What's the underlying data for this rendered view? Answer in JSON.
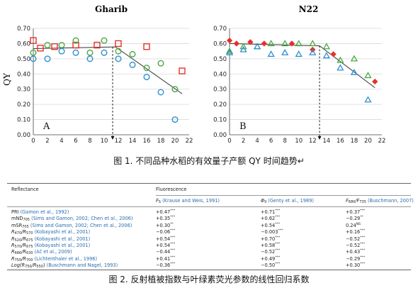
{
  "figure1": {
    "caption": "图 1. 不同品种水稻的有效量子产额 QY 时间趋势↵",
    "y_label": "QY",
    "chart_data": [
      {
        "type": "scatter",
        "title": "Gharib",
        "panel_letter": "A",
        "xlim": [
          0,
          22
        ],
        "ylim": [
          0,
          0.7
        ],
        "x_ticks": [
          0,
          2,
          4,
          6,
          8,
          10,
          12,
          14,
          16,
          18,
          20,
          22
        ],
        "y_ticks": [
          "0.00",
          "0.10",
          "0.20",
          "0.30",
          "0.40",
          "0.50",
          "0.60",
          "0.70"
        ],
        "dashed_arrow_x": 11.2,
        "trend_line": [
          [
            0,
            0.567
          ],
          [
            11.6,
            0.578
          ],
          [
            21,
            0.27
          ]
        ],
        "series": [
          {
            "marker": "square",
            "color": "#e8302a",
            "points": [
              [
                0,
                0.62
              ],
              [
                1,
                0.57
              ],
              [
                3,
                0.58
              ],
              [
                6,
                0.59
              ],
              [
                9,
                0.59
              ],
              [
                12,
                0.6
              ],
              [
                16,
                0.58
              ],
              [
                21,
                0.42
              ]
            ]
          },
          {
            "marker": "circle-open",
            "color": "#4aa844",
            "points": [
              [
                0,
                0.54
              ],
              [
                2,
                0.59
              ],
              [
                4,
                0.59
              ],
              [
                6,
                0.62
              ],
              [
                8,
                0.54
              ],
              [
                10,
                0.62
              ],
              [
                12,
                0.55
              ],
              [
                14,
                0.53
              ],
              [
                16,
                0.44
              ],
              [
                18,
                0.47
              ],
              [
                20,
                0.3
              ]
            ]
          },
          {
            "marker": "circle-open",
            "color": "#2f8fd0",
            "points": [
              [
                0,
                0.5
              ],
              [
                2,
                0.5
              ],
              [
                4,
                0.55
              ],
              [
                6,
                0.54
              ],
              [
                8,
                0.5
              ],
              [
                10,
                0.54
              ],
              [
                12,
                0.5
              ],
              [
                14,
                0.46
              ],
              [
                16,
                0.38
              ],
              [
                18,
                0.28
              ],
              [
                20,
                0.1
              ]
            ]
          }
        ]
      },
      {
        "type": "scatter",
        "title": "N22",
        "panel_letter": "B",
        "xlim": [
          0,
          22
        ],
        "ylim": [
          0,
          0.7
        ],
        "x_ticks": [
          0,
          2,
          4,
          6,
          8,
          10,
          12,
          14,
          16,
          18,
          20,
          22
        ],
        "y_ticks": [
          "0.00",
          "0.10",
          "0.20",
          "0.30",
          "0.40",
          "0.50",
          "0.60",
          "0.70"
        ],
        "dashed_arrow_x": 13,
        "trend_line": [
          [
            0,
            0.6
          ],
          [
            13,
            0.585
          ],
          [
            21,
            0.31
          ]
        ],
        "series": [
          {
            "marker": "diamond",
            "color": "#e8302a",
            "points": [
              [
                0,
                0.62
              ],
              [
                1,
                0.6
              ],
              [
                3,
                0.61
              ],
              [
                5,
                0.6
              ],
              [
                9,
                0.6
              ],
              [
                12,
                0.56
              ],
              [
                15,
                0.53
              ],
              [
                21,
                0.35
              ]
            ]
          },
          {
            "marker": "triangle-open",
            "color": "#4aa844",
            "points": [
              [
                0,
                0.55
              ],
              [
                2,
                0.58
              ],
              [
                4,
                0.58
              ],
              [
                6,
                0.6
              ],
              [
                8,
                0.6
              ],
              [
                10,
                0.6
              ],
              [
                12,
                0.6
              ],
              [
                14,
                0.58
              ],
              [
                16,
                0.49
              ],
              [
                18,
                0.5
              ],
              [
                20,
                0.39
              ]
            ]
          },
          {
            "marker": "triangle-open",
            "color": "#2f8fd0",
            "points": [
              [
                0,
                0.54
              ],
              [
                2,
                0.56
              ],
              [
                4,
                0.58
              ],
              [
                6,
                0.53
              ],
              [
                8,
                0.54
              ],
              [
                10,
                0.53
              ],
              [
                12,
                0.54
              ],
              [
                14,
                0.52
              ],
              [
                16,
                0.44
              ],
              [
                18,
                0.41
              ],
              [
                20,
                0.23
              ]
            ]
          }
        ]
      }
    ]
  },
  "table": {
    "caption": "图 2. 反射植被指数与叶绿素荧光参数的线性回归系数",
    "col_reflectance": "Reflectance",
    "col_fluorescence": "Fluorescence",
    "sub_headers": [
      {
        "sym": "F",
        "symsub": "S",
        "cite": "(Krause and Weis, 1991)"
      },
      {
        "sym": "Φ",
        "symsub": "II",
        "cite": "(Genty et al., 1989)"
      },
      {
        "sym": "F",
        "symsub": "680",
        "sym2": "/F",
        "symsub2": "735",
        "cite": "(Buschmann, 2007)"
      }
    ],
    "rows": [
      {
        "name": "PRI",
        "cite": "(Gamon et al., 1992)",
        "v": [
          [
            "+0.47",
            "***"
          ],
          [
            "+0.71",
            "***"
          ],
          [
            "+0.37",
            "***"
          ]
        ]
      },
      {
        "name": "mND",
        "nsub": "705",
        "cite": "(Sims and Gamon, 2002; Chen et al., 2006)",
        "v": [
          [
            "+0.35",
            "***"
          ],
          [
            "+0.62",
            "***"
          ],
          [
            "−0.29",
            "**"
          ]
        ]
      },
      {
        "name": "mSR",
        "nsub": "705",
        "cite": "(Sims and Gamon, 2002; Chen et al., 2006)",
        "v": [
          [
            "+0.30",
            "**"
          ],
          [
            "+0.54",
            "***"
          ],
          [
            "0.24",
            "NS"
          ]
        ]
      },
      {
        "name": "R",
        "nsub": "470",
        "name2": "/R",
        "nsub2": "570",
        "cite": "(Kobayashi et al., 2001)",
        "v": [
          [
            "−0.06",
            "***"
          ],
          [
            "−0.003",
            "***"
          ],
          [
            "+0.16",
            "***"
          ]
        ]
      },
      {
        "name": "R",
        "nsub": "520",
        "name2": "/R",
        "nsub2": "675",
        "cite": "(Kobayashi et al., 2001)",
        "v": [
          [
            "+0.54",
            "***"
          ],
          [
            "+0.70",
            "***"
          ],
          [
            "−0.52",
            "***"
          ]
        ]
      },
      {
        "name": "R",
        "nsub": "570",
        "name2": "/R",
        "nsub2": "675",
        "cite": "(Kobayashi et al., 2001)",
        "v": [
          [
            "+0.54",
            "***"
          ],
          [
            "+0.58",
            "***"
          ],
          [
            "−0.52",
            "***"
          ]
        ]
      },
      {
        "name": "R",
        "nsub": "686",
        "name2": "/R",
        "nsub2": "630",
        "cite": "(Aĉ et al., 2009)",
        "v": [
          [
            "−0.44",
            "***"
          ],
          [
            "−0.52",
            "***"
          ],
          [
            "+0.43",
            "***"
          ]
        ]
      },
      {
        "name": "R",
        "nsub": "750",
        "name2": "/R",
        "nsub2": "700",
        "cite": "(Lichtenthaler et al., 1996)",
        "v": [
          [
            "+0.41",
            "***"
          ],
          [
            "+0.49",
            "***"
          ],
          [
            "−0.29",
            "***"
          ]
        ]
      },
      {
        "name": "Log(R",
        "nsub": "750",
        "name2": "/R",
        "nsub2": "550",
        "name3": ")",
        "cite": "(Buschmann and Nagel, 1993)",
        "v": [
          [
            "−0.36",
            "***"
          ],
          [
            "−0.50",
            "***"
          ],
          [
            "+0.30",
            "***"
          ]
        ]
      }
    ]
  }
}
